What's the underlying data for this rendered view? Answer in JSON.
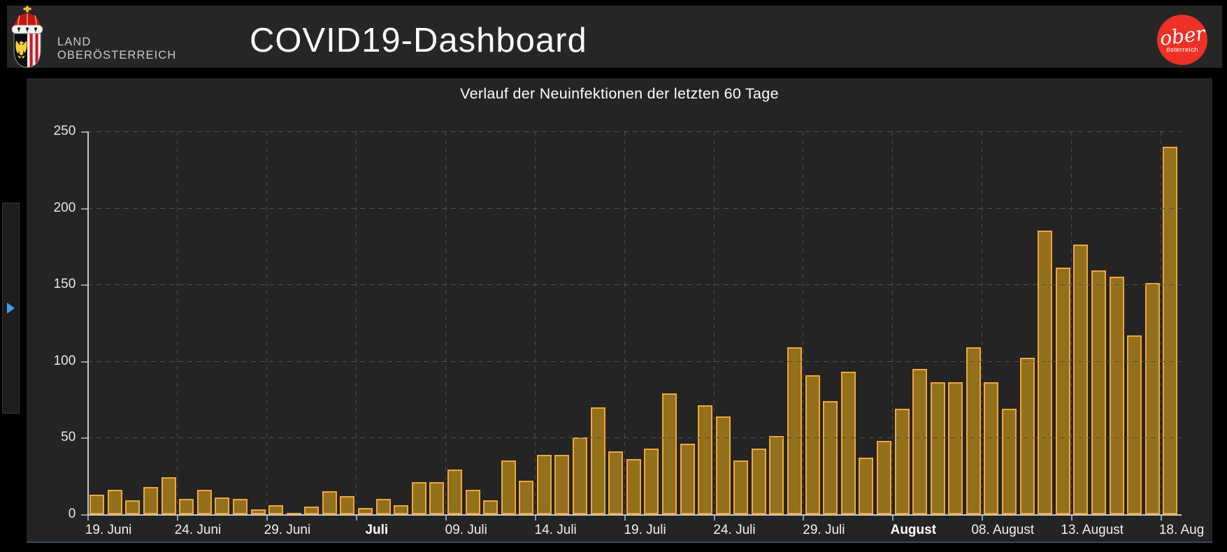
{
  "header": {
    "org_line1": "LAND",
    "org_line2": "OBERÖSTERREICH",
    "title": "COVID19-Dashboard",
    "logo": {
      "main": "ober",
      "sub": "österreich",
      "color": "#EE3126"
    }
  },
  "sidebar": {
    "expand_icon": "right-triangle",
    "accent_color": "#3AA0E8"
  },
  "chart_data": {
    "type": "bar",
    "title": "Verlauf der Neuinfektionen der letzten 60 Tage",
    "xlabel": "",
    "ylabel": "",
    "ylim": [
      0,
      250
    ],
    "yticks": [
      0,
      50,
      100,
      150,
      200,
      250
    ],
    "grid": "dashed",
    "legend": "none",
    "bar_fill": "#93701B",
    "bar_border": "#EFA73C",
    "grid_color": "#515151",
    "axis_color": "#C9C9C9",
    "x": [
      "19. Juni",
      "20. Juni",
      "21. Juni",
      "22. Juni",
      "23. Juni",
      "24. Juni",
      "25. Juni",
      "26. Juni",
      "27. Juni",
      "28. Juni",
      "29. Juni",
      "30. Juni",
      "01. Juli",
      "02. Juli",
      "03. Juli",
      "04. Juli",
      "05. Juli",
      "06. Juli",
      "07. Juli",
      "08. Juli",
      "09. Juli",
      "10. Juli",
      "11. Juli",
      "12. Juli",
      "13. Juli",
      "14. Juli",
      "15. Juli",
      "16. Juli",
      "17. Juli",
      "18. Juli",
      "19. Juli",
      "20. Juli",
      "21. Juli",
      "22. Juli",
      "23. Juli",
      "24. Juli",
      "25. Juli",
      "26. Juli",
      "27. Juli",
      "28. Juli",
      "29. Juli",
      "30. Juli",
      "31. Juli",
      "01. August",
      "02. August",
      "03. August",
      "04. August",
      "05. August",
      "06. August",
      "07. August",
      "08. August",
      "09. August",
      "10. August",
      "11. August",
      "12. August",
      "13. August",
      "14. August",
      "15. August",
      "16. August",
      "17. August",
      "18. August"
    ],
    "values": [
      13,
      16,
      9,
      18,
      24,
      10,
      16,
      11,
      10,
      3,
      6,
      1,
      5,
      15,
      12,
      4,
      10,
      6,
      21,
      21,
      29,
      16,
      9,
      35,
      22,
      39,
      39,
      50,
      70,
      41,
      36,
      43,
      79,
      46,
      71,
      64,
      35,
      43,
      51,
      109,
      91,
      74,
      93,
      37,
      48,
      69,
      95,
      86,
      86,
      109,
      86,
      69,
      102,
      185,
      161,
      176,
      159,
      155,
      117,
      151,
      240
    ],
    "tick_labels": [
      {
        "index": 0,
        "label": "19. Juni",
        "bold": false
      },
      {
        "index": 5,
        "label": "24. Juni",
        "bold": false
      },
      {
        "index": 10,
        "label": "29. Juni",
        "bold": false
      },
      {
        "index": 15,
        "label": "Juli",
        "bold": true
      },
      {
        "index": 20,
        "label": "09. Juli",
        "bold": false
      },
      {
        "index": 25,
        "label": "14. Juli",
        "bold": false
      },
      {
        "index": 30,
        "label": "19. Juli",
        "bold": false
      },
      {
        "index": 35,
        "label": "24. Juli",
        "bold": false
      },
      {
        "index": 40,
        "label": "29. Juli",
        "bold": false
      },
      {
        "index": 45,
        "label": "August",
        "bold": true
      },
      {
        "index": 50,
        "label": "08. August",
        "bold": false
      },
      {
        "index": 55,
        "label": "13. August",
        "bold": false
      },
      {
        "index": 60,
        "label": "18. Aug",
        "bold": false
      }
    ]
  }
}
